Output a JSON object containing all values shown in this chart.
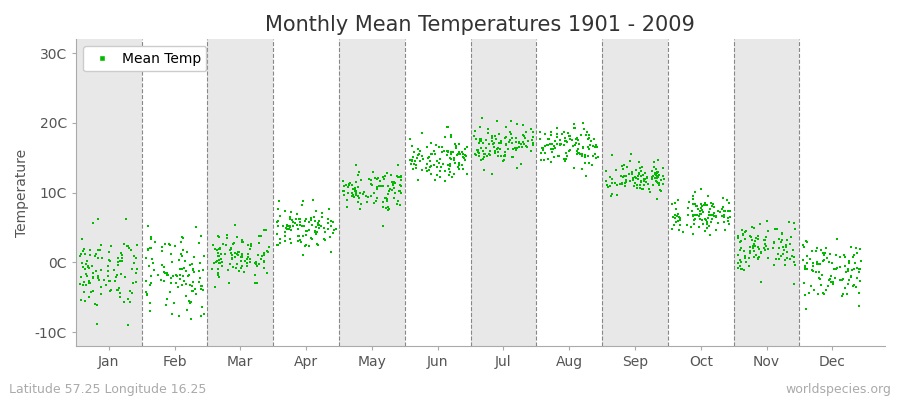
{
  "title": "Monthly Mean Temperatures 1901 - 2009",
  "ylabel": "Temperature",
  "xlabel_bottom_left": "Latitude 57.25 Longitude 16.25",
  "xlabel_bottom_right": "worldspecies.org",
  "ylim": [
    -12,
    32
  ],
  "yticks": [
    -10,
    0,
    10,
    20,
    30
  ],
  "ytick_labels": [
    "-10C",
    "0C",
    "10C",
    "20C",
    "30C"
  ],
  "month_names": [
    "Jan",
    "Feb",
    "Mar",
    "Apr",
    "May",
    "Jun",
    "Jul",
    "Aug",
    "Sep",
    "Oct",
    "Nov",
    "Dec"
  ],
  "monthly_means": [
    -1.5,
    -2.0,
    1.0,
    5.0,
    10.5,
    15.0,
    17.0,
    16.5,
    12.0,
    7.0,
    2.0,
    -1.0
  ],
  "monthly_stds": [
    2.8,
    3.0,
    1.8,
    1.5,
    1.5,
    1.5,
    1.5,
    1.5,
    1.3,
    1.3,
    1.8,
    2.2
  ],
  "dot_color": "#00bb00",
  "dot_size": 2,
  "background_color": "#ffffff",
  "plot_bg_color": "#f0f0f0",
  "legend_label": "Mean Temp",
  "title_fontsize": 15,
  "axis_fontsize": 10,
  "tick_fontsize": 10,
  "footer_fontsize": 9,
  "vline_color": "#888888",
  "band_color": "#e8e8e8"
}
